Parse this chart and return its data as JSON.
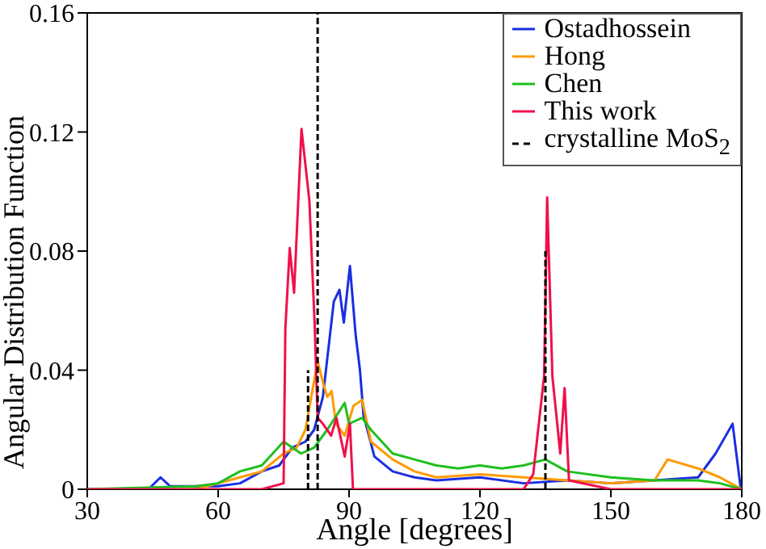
{
  "chart_data": {
    "type": "line",
    "xlabel": "Angle [degrees]",
    "ylabel": "Angular Distribution Function",
    "xlim": [
      30,
      180
    ],
    "xticks": [
      30,
      60,
      90,
      120,
      150,
      180
    ],
    "ylim": [
      0,
      0.16
    ],
    "yticks": [
      0,
      0.04,
      0.08,
      0.12,
      0.16
    ],
    "grid": false,
    "legend": "top right",
    "marker": "none",
    "line_style": "solid",
    "series": [
      {
        "name": "Ostadhossein",
        "color": "#1a2ee0",
        "x": [
          30,
          44,
          46.8,
          49,
          55,
          60,
          65,
          70,
          74,
          77,
          80,
          82,
          84,
          86.5,
          87.8,
          88.8,
          90.2,
          91.5,
          92.5,
          93.3,
          95.8,
          100,
          105,
          110,
          120,
          130,
          140,
          150,
          160,
          170,
          174,
          177.9,
          179.7,
          180
        ],
        "values": [
          0,
          0,
          0.004,
          0.001,
          0.001,
          0.001,
          0.002,
          0.006,
          0.008,
          0.014,
          0.016,
          0.02,
          0.031,
          0.063,
          0.067,
          0.056,
          0.075,
          0.052,
          0.04,
          0.025,
          0.011,
          0.006,
          0.004,
          0.003,
          0.004,
          0.002,
          0.003,
          0.002,
          0.003,
          0.004,
          0.012,
          0.022,
          0.001,
          0
        ]
      },
      {
        "name": "Hong",
        "color": "#ff9a00",
        "x": [
          30,
          55,
          60,
          65,
          70,
          75,
          78,
          80,
          82.8,
          84,
          85,
          86,
          87,
          89,
          91,
          93,
          95,
          100,
          105,
          110,
          120,
          130,
          140,
          150,
          160,
          163,
          170,
          175,
          180
        ],
        "values": [
          0,
          0,
          0.002,
          0.004,
          0.006,
          0.012,
          0.014,
          0.02,
          0.043,
          0.036,
          0.031,
          0.033,
          0.022,
          0.018,
          0.028,
          0.03,
          0.016,
          0.01,
          0.006,
          0.004,
          0.005,
          0.004,
          0.003,
          0.002,
          0.003,
          0.01,
          0.007,
          0.004,
          0
        ]
      },
      {
        "name": "Chen",
        "color": "#1fbf1f",
        "x": [
          30,
          55,
          60,
          65,
          70,
          75,
          79,
          82,
          85,
          89,
          90,
          93,
          95,
          100,
          105,
          110,
          115,
          120,
          125,
          130,
          135,
          140,
          150,
          160,
          170,
          175,
          180
        ],
        "values": [
          0,
          0.001,
          0.002,
          0.006,
          0.008,
          0.016,
          0.012,
          0.014,
          0.02,
          0.029,
          0.022,
          0.024,
          0.02,
          0.012,
          0.01,
          0.008,
          0.007,
          0.008,
          0.007,
          0.008,
          0.01,
          0.006,
          0.004,
          0.003,
          0.003,
          0.002,
          0
        ]
      },
      {
        "name": "This work",
        "color": "#f0104a",
        "x": [
          30,
          70,
          75,
          75.4,
          76.4,
          77.4,
          79.1,
          80.9,
          82.1,
          82.8,
          84,
          85.9,
          87.1,
          89,
          90.2,
          90.9,
          100,
          130,
          132.2,
          134.7,
          135.4,
          136.6,
          138.4,
          139.4,
          140.4,
          150,
          180
        ],
        "values": [
          0,
          0,
          0.002,
          0.054,
          0.081,
          0.066,
          0.121,
          0.097,
          0.056,
          0.024,
          0.022,
          0.018,
          0.024,
          0.011,
          0.022,
          0,
          0,
          0,
          0.005,
          0.038,
          0.098,
          0.038,
          0.012,
          0.034,
          0.003,
          0,
          0
        ]
      },
      {
        "name": "crystalline MoS$_{2}$",
        "color": "#000000",
        "line_style": "dashed",
        "x": [
          80.6,
          80.6,
          null,
          82.8,
          82.8,
          null,
          135,
          135
        ],
        "values": [
          0,
          0.04,
          null,
          0,
          0.16,
          null,
          0,
          0.08
        ]
      }
    ]
  }
}
